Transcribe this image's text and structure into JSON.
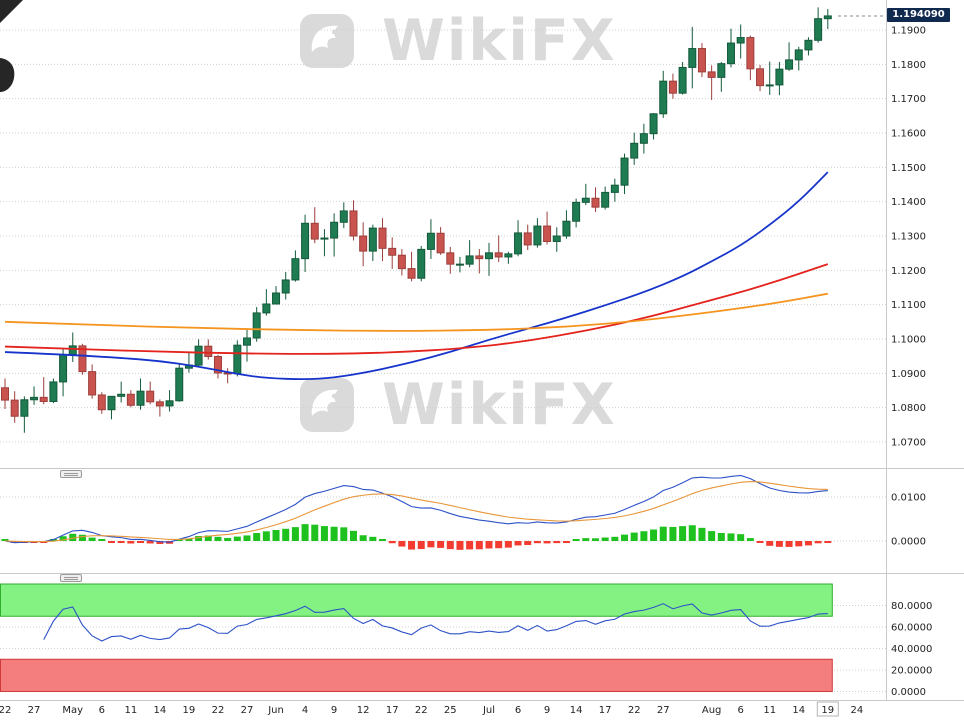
{
  "app": {
    "watermark_text": "WikiFX",
    "last_price": "1.194090"
  },
  "colors": {
    "bull": "#1e7b52",
    "bull_border": "#145a3b",
    "bear": "#c9534e",
    "bear_border": "#9c3f3b",
    "hist_pos": "#1fc11f",
    "hist_neg": "#f33b2f",
    "macd_line": "#2d52c8",
    "macd_signal": "#e8973b",
    "rsi_line": "#2d52c8",
    "grid": "#d0d0d0",
    "frame": "#c9c9c9",
    "axis_text": "#222222",
    "badge_bg": "#10294f",
    "badge_text": "#ffffff",
    "watermark": "#dadada"
  },
  "chart_data": [
    {
      "type": "candlestick",
      "panel": "price",
      "last_price": 1.19409,
      "ylim": [
        1.063,
        1.1987
      ],
      "y_ticks": [
        {
          "label": "1.1900",
          "value": 1.19
        },
        {
          "label": "1.1800",
          "value": 1.18
        },
        {
          "label": "1.1700",
          "value": 1.17
        },
        {
          "label": "1.1600",
          "value": 1.16
        },
        {
          "label": "1.1500",
          "value": 1.15
        },
        {
          "label": "1.1400",
          "value": 1.14
        },
        {
          "label": "1.1300",
          "value": 1.13
        },
        {
          "label": "1.1200",
          "value": 1.12
        },
        {
          "label": "1.1100",
          "value": 1.11
        },
        {
          "label": "1.1000",
          "value": 1.1
        },
        {
          "label": "1.0900",
          "value": 1.09
        },
        {
          "label": "1.0800",
          "value": 1.08
        },
        {
          "label": "1.0700",
          "value": 1.07
        }
      ],
      "x_labels": [
        {
          "label": "22",
          "i": 0
        },
        {
          "label": "27",
          "i": 3
        },
        {
          "label": "May",
          "i": 7
        },
        {
          "label": "6",
          "i": 10
        },
        {
          "label": "11",
          "i": 13
        },
        {
          "label": "14",
          "i": 16
        },
        {
          "label": "19",
          "i": 19
        },
        {
          "label": "22",
          "i": 22
        },
        {
          "label": "27",
          "i": 25
        },
        {
          "label": "Jun",
          "i": 28
        },
        {
          "label": "4",
          "i": 31
        },
        {
          "label": "9",
          "i": 34
        },
        {
          "label": "12",
          "i": 37
        },
        {
          "label": "17",
          "i": 40
        },
        {
          "label": "22",
          "i": 43
        },
        {
          "label": "25",
          "i": 46
        },
        {
          "label": "Jul",
          "i": 50
        },
        {
          "label": "6",
          "i": 53
        },
        {
          "label": "9",
          "i": 56
        },
        {
          "label": "14",
          "i": 59
        },
        {
          "label": "17",
          "i": 62
        },
        {
          "label": "22",
          "i": 65
        },
        {
          "label": "27",
          "i": 68
        },
        {
          "label": "Aug",
          "i": 73
        },
        {
          "label": "6",
          "i": 76
        },
        {
          "label": "11",
          "i": 79
        },
        {
          "label": "14",
          "i": 82
        },
        {
          "label": "19",
          "i": 85
        },
        {
          "label": "24",
          "i": 88
        }
      ],
      "highlighted_x_label": {
        "label": "19",
        "i": 85
      },
      "candles": [
        [
          1.0858,
          1.0885,
          1.0796,
          1.0822
        ],
        [
          1.0822,
          1.0848,
          1.0756,
          1.0775
        ],
        [
          1.0775,
          1.0833,
          1.0727,
          1.0823
        ],
        [
          1.0823,
          1.0862,
          1.0808,
          1.083
        ],
        [
          1.083,
          1.0889,
          1.081,
          1.0818
        ],
        [
          1.0818,
          1.0885,
          1.0813,
          1.0875
        ],
        [
          1.0875,
          1.0972,
          1.0833,
          1.0955
        ],
        [
          1.0955,
          1.1019,
          1.0933,
          1.098
        ],
        [
          1.098,
          1.0986,
          1.0896,
          1.0905
        ],
        [
          1.0905,
          1.0926,
          1.0826,
          1.0837
        ],
        [
          1.0837,
          1.0845,
          1.0782,
          1.0794
        ],
        [
          1.0794,
          1.0834,
          1.0766,
          1.0833
        ],
        [
          1.0833,
          1.0876,
          1.0815,
          1.0839
        ],
        [
          1.0839,
          1.0851,
          1.0801,
          1.0807
        ],
        [
          1.0807,
          1.0885,
          1.0794,
          1.0848
        ],
        [
          1.0848,
          1.0876,
          1.081,
          1.0817
        ],
        [
          1.0817,
          1.0824,
          1.0774,
          1.0805
        ],
        [
          1.0805,
          1.0851,
          1.0789,
          1.082
        ],
        [
          1.082,
          1.0927,
          1.0817,
          1.0915
        ],
        [
          1.0915,
          1.0962,
          1.0902,
          1.0924
        ],
        [
          1.0924,
          1.0999,
          1.0918,
          1.0979
        ],
        [
          1.0979,
          1.0999,
          1.094,
          1.0949
        ],
        [
          1.0949,
          1.0954,
          1.0885,
          1.0901
        ],
        [
          1.0901,
          1.0915,
          1.0871,
          1.0899
        ],
        [
          1.0899,
          1.0996,
          1.0891,
          1.0982
        ],
        [
          1.0982,
          1.1031,
          1.0934,
          1.1003
        ],
        [
          1.1003,
          1.1093,
          1.0992,
          1.1076
        ],
        [
          1.1076,
          1.1145,
          1.1068,
          1.1102
        ],
        [
          1.1102,
          1.1154,
          1.1101,
          1.1134
        ],
        [
          1.1134,
          1.1195,
          1.1115,
          1.1172
        ],
        [
          1.1172,
          1.1258,
          1.1167,
          1.1234
        ],
        [
          1.1234,
          1.1362,
          1.1195,
          1.1337
        ],
        [
          1.1337,
          1.1384,
          1.1279,
          1.1291
        ],
        [
          1.1291,
          1.132,
          1.1241,
          1.1294
        ],
        [
          1.1294,
          1.1366,
          1.124,
          1.134
        ],
        [
          1.134,
          1.1398,
          1.1323,
          1.1373
        ],
        [
          1.1373,
          1.1404,
          1.1287,
          1.13
        ],
        [
          1.13,
          1.134,
          1.1212,
          1.1256
        ],
        [
          1.1256,
          1.1333,
          1.1227,
          1.1323
        ],
        [
          1.1323,
          1.1352,
          1.1227,
          1.1264
        ],
        [
          1.1264,
          1.1296,
          1.1204,
          1.1244
        ],
        [
          1.1244,
          1.1262,
          1.1185,
          1.1205
        ],
        [
          1.1205,
          1.1254,
          1.1168,
          1.1177
        ],
        [
          1.1177,
          1.1271,
          1.1168,
          1.1261
        ],
        [
          1.1261,
          1.1349,
          1.1233,
          1.1308
        ],
        [
          1.1308,
          1.1326,
          1.1245,
          1.1251
        ],
        [
          1.1251,
          1.1268,
          1.119,
          1.1218
        ],
        [
          1.1218,
          1.1239,
          1.1194,
          1.1218
        ],
        [
          1.1218,
          1.1288,
          1.1209,
          1.1242
        ],
        [
          1.1242,
          1.1262,
          1.1191,
          1.1234
        ],
        [
          1.1234,
          1.128,
          1.1184,
          1.1251
        ],
        [
          1.1251,
          1.1302,
          1.1224,
          1.1239
        ],
        [
          1.1239,
          1.1254,
          1.1219,
          1.1248
        ],
        [
          1.1248,
          1.1346,
          1.1241,
          1.1309
        ],
        [
          1.1309,
          1.1333,
          1.1259,
          1.1274
        ],
        [
          1.1274,
          1.1352,
          1.1266,
          1.1329
        ],
        [
          1.1329,
          1.1371,
          1.1275,
          1.1284
        ],
        [
          1.1284,
          1.1325,
          1.1254,
          1.13
        ],
        [
          1.13,
          1.1375,
          1.1292,
          1.1343
        ],
        [
          1.1343,
          1.1409,
          1.1325,
          1.1398
        ],
        [
          1.1398,
          1.1452,
          1.139,
          1.141
        ],
        [
          1.141,
          1.1442,
          1.137,
          1.1384
        ],
        [
          1.1384,
          1.1444,
          1.1377,
          1.1427
        ],
        [
          1.1427,
          1.1467,
          1.14,
          1.1448
        ],
        [
          1.1448,
          1.154,
          1.1422,
          1.1527
        ],
        [
          1.1527,
          1.1601,
          1.1507,
          1.157
        ],
        [
          1.157,
          1.1627,
          1.154,
          1.1598
        ],
        [
          1.1598,
          1.1658,
          1.1581,
          1.1656
        ],
        [
          1.1656,
          1.1781,
          1.1644,
          1.1751
        ],
        [
          1.1751,
          1.1773,
          1.17,
          1.1716
        ],
        [
          1.1716,
          1.1807,
          1.1712,
          1.1791
        ],
        [
          1.1791,
          1.1909,
          1.173,
          1.1846
        ],
        [
          1.1846,
          1.1862,
          1.1763,
          1.1778
        ],
        [
          1.1778,
          1.1797,
          1.1696,
          1.1762
        ],
        [
          1.1762,
          1.1807,
          1.172,
          1.1802
        ],
        [
          1.1802,
          1.1904,
          1.1791,
          1.1862
        ],
        [
          1.1862,
          1.1916,
          1.1817,
          1.1878
        ],
        [
          1.1878,
          1.1884,
          1.1754,
          1.1787
        ],
        [
          1.1787,
          1.1798,
          1.1722,
          1.1738
        ],
        [
          1.1738,
          1.1808,
          1.1711,
          1.174
        ],
        [
          1.174,
          1.1807,
          1.171,
          1.1786
        ],
        [
          1.1786,
          1.1864,
          1.1781,
          1.1813
        ],
        [
          1.1813,
          1.1851,
          1.1782,
          1.1842
        ],
        [
          1.1842,
          1.1879,
          1.1826,
          1.187
        ],
        [
          1.187,
          1.1966,
          1.1863,
          1.1933
        ],
        [
          1.1933,
          1.1961,
          1.1903,
          1.1941
        ]
      ],
      "moving_averages": [
        {
          "name": "ma-blue",
          "color": "#1634cb",
          "points": [
            [
              0,
              1.0962
            ],
            [
              6,
              1.0955
            ],
            [
              12,
              1.0945
            ],
            [
              16,
              1.0936
            ],
            [
              20,
              1.092
            ],
            [
              24,
              1.0898
            ],
            [
              27,
              1.0886
            ],
            [
              31,
              1.0882
            ],
            [
              34,
              1.0887
            ],
            [
              38,
              1.0906
            ],
            [
              42,
              1.0932
            ],
            [
              46,
              1.0962
            ],
            [
              50,
              1.0998
            ],
            [
              54,
              1.103
            ],
            [
              58,
              1.1062
            ],
            [
              62,
              1.1098
            ],
            [
              66,
              1.1136
            ],
            [
              70,
              1.1182
            ],
            [
              73,
              1.1226
            ],
            [
              76,
              1.1272
            ],
            [
              79,
              1.1332
            ],
            [
              82,
              1.14
            ],
            [
              85,
              1.1486
            ]
          ]
        },
        {
          "name": "ma-red",
          "color": "#e3231c",
          "points": [
            [
              0,
              1.0978
            ],
            [
              8,
              1.097
            ],
            [
              16,
              1.0963
            ],
            [
              24,
              1.0958
            ],
            [
              32,
              1.0956
            ],
            [
              40,
              1.096
            ],
            [
              48,
              1.0974
            ],
            [
              54,
              1.0994
            ],
            [
              60,
              1.1024
            ],
            [
              66,
              1.106
            ],
            [
              72,
              1.1106
            ],
            [
              78,
              1.1152
            ],
            [
              85,
              1.1218
            ]
          ]
        },
        {
          "name": "ma-orange",
          "color": "#f5941e",
          "points": [
            [
              0,
              1.105
            ],
            [
              10,
              1.104
            ],
            [
              20,
              1.1032
            ],
            [
              30,
              1.1026
            ],
            [
              40,
              1.1023
            ],
            [
              50,
              1.1026
            ],
            [
              58,
              1.1035
            ],
            [
              66,
              1.1054
            ],
            [
              74,
              1.1082
            ],
            [
              80,
              1.1106
            ],
            [
              85,
              1.1132
            ]
          ]
        }
      ]
    },
    {
      "type": "macd",
      "panel": "macd",
      "source": "close",
      "params": {
        "fast": 12,
        "slow": 26,
        "signal": 9
      },
      "y_ticks": [
        {
          "label": "0.0100",
          "value": 0.01
        },
        {
          "label": "0.0000",
          "value": 0
        }
      ]
    },
    {
      "type": "rsi",
      "panel": "oscillator",
      "source": "close",
      "params": {
        "period": 14
      },
      "bands": [
        {
          "from": 70,
          "to": 100,
          "fill": "#83f283",
          "edge": "#2eae2e"
        },
        {
          "from": 0,
          "to": 30,
          "fill": "#f47d7d",
          "edge": "#d03a3a"
        }
      ],
      "y_ticks": [
        {
          "label": "80.0000",
          "value": 80
        },
        {
          "label": "60.0000",
          "value": 60
        },
        {
          "label": "40.0000",
          "value": 40
        },
        {
          "label": "20.0000",
          "value": 20
        },
        {
          "label": "0.0000",
          "value": 0
        }
      ]
    }
  ]
}
